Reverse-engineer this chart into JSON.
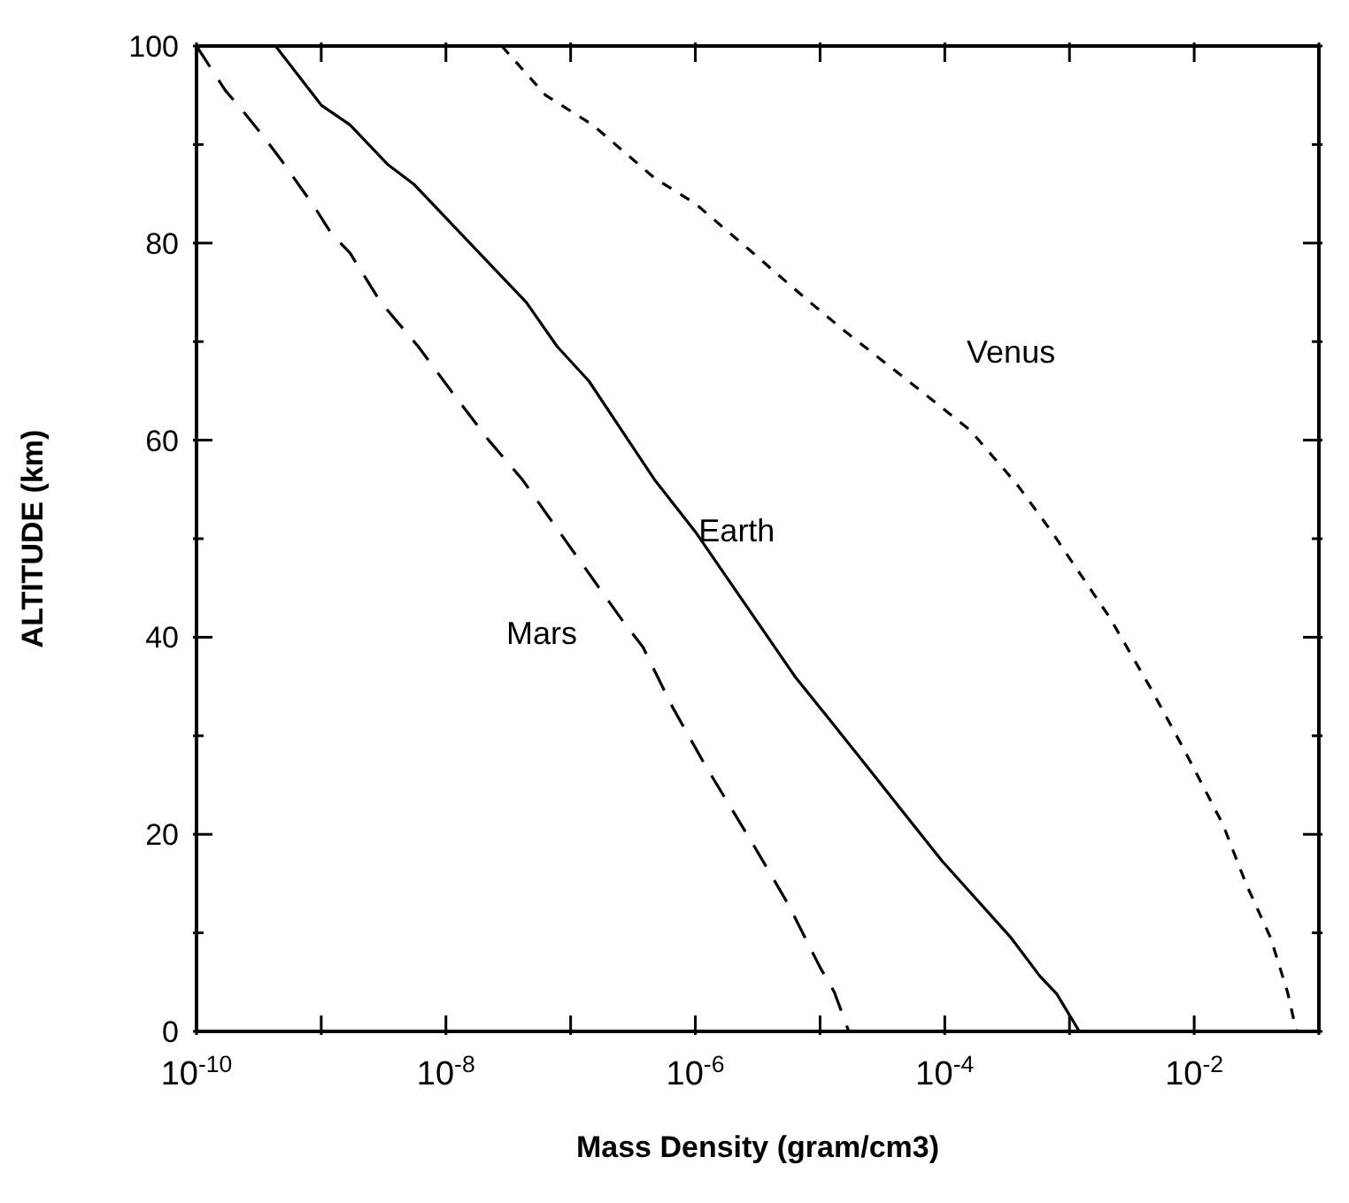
{
  "chart_data": {
    "type": "line",
    "xlabel": "Mass Density (gram/cm3)",
    "ylabel": "ALTITUDE (km)",
    "log": "x",
    "marker": "none",
    "xlim": [
      1e-10,
      0.1
    ],
    "xticks": [
      {
        "value": 1e-10,
        "label": "10$^{-10}$"
      },
      {
        "value": 1e-09,
        "label": null
      },
      {
        "value": 1e-08,
        "label": "10$^{-8}$"
      },
      {
        "value": 1e-07,
        "label": null
      },
      {
        "value": 1e-06,
        "label": "10$^{-6}$"
      },
      {
        "value": 1e-05,
        "label": null
      },
      {
        "value": 0.0001,
        "label": "10$^{-4}$"
      },
      {
        "value": 0.001,
        "label": null
      },
      {
        "value": 0.01,
        "label": "10$^{-2}$"
      },
      {
        "value": 0.1,
        "label": null
      }
    ],
    "ylim": [
      0,
      100
    ],
    "yticks": [
      0,
      {
        "value": 10,
        "label": null
      },
      20,
      {
        "value": 30,
        "label": null
      },
      40,
      {
        "value": 50,
        "label": null
      },
      60,
      {
        "value": 70,
        "label": null
      },
      80,
      {
        "value": 90,
        "label": null
      },
      100
    ],
    "series": [
      {
        "name": "Earth",
        "color": "#000000",
        "line_style": "solid",
        "x": [
          4.3e-10,
          1e-09,
          1.7e-09,
          3.4e-09,
          5.5e-09,
          2.2e-08,
          4.4e-08,
          7.8e-08,
          1.4e-07,
          4.7e-07,
          1e-06,
          6.3e-06,
          1.2e-05,
          2.7e-05,
          9.5e-05,
          0.00034,
          0.00058,
          0.00079,
          0.0012
        ],
        "values": [
          100,
          94,
          92,
          88,
          86,
          78,
          74,
          69.5,
          66,
          56,
          50.7,
          36,
          31.6,
          26,
          17.3,
          9.5,
          5.6,
          3.8,
          0
        ]
      },
      {
        "name": "Mars",
        "color": "#000000",
        "line_style": "dashed",
        "x": [
          1e-10,
          1.7e-10,
          2.5e-10,
          3.5e-10,
          4.8e-10,
          8.9e-10,
          1.2e-09,
          1.7e-09,
          3e-09,
          6e-09,
          1.1e-08,
          2.2e-08,
          4.1e-08,
          7.8e-08,
          2.5e-07,
          3.8e-07,
          6.5e-07,
          1.2e-06,
          2.9e-06,
          5.5e-06,
          1e-05,
          1.3e-05,
          1.7e-05
        ],
        "values": [
          100,
          95.5,
          93,
          90.7,
          88.4,
          83.6,
          81,
          79,
          74,
          69.5,
          65,
          60,
          56,
          51,
          42,
          39,
          33,
          27,
          19,
          13,
          6.5,
          4,
          0
        ]
      },
      {
        "name": "Venus",
        "color": "#000000",
        "line_style": "dotted",
        "x": [
          2.8e-08,
          6.3e-08,
          1.5e-07,
          4.7e-07,
          1e-06,
          2.9e-06,
          4.4e-06,
          8.3e-06,
          1.6e-05,
          5.6e-05,
          0.00016,
          0.00038,
          0.00072,
          0.0021,
          0.0044,
          0.0083,
          0.017,
          0.026,
          0.041,
          0.056,
          0.066
        ],
        "values": [
          100,
          95,
          92,
          86.6,
          84,
          79,
          77,
          74,
          71,
          65.6,
          61,
          55.5,
          50.7,
          42,
          35,
          28.6,
          21,
          15,
          9.5,
          4,
          0
        ]
      }
    ]
  }
}
